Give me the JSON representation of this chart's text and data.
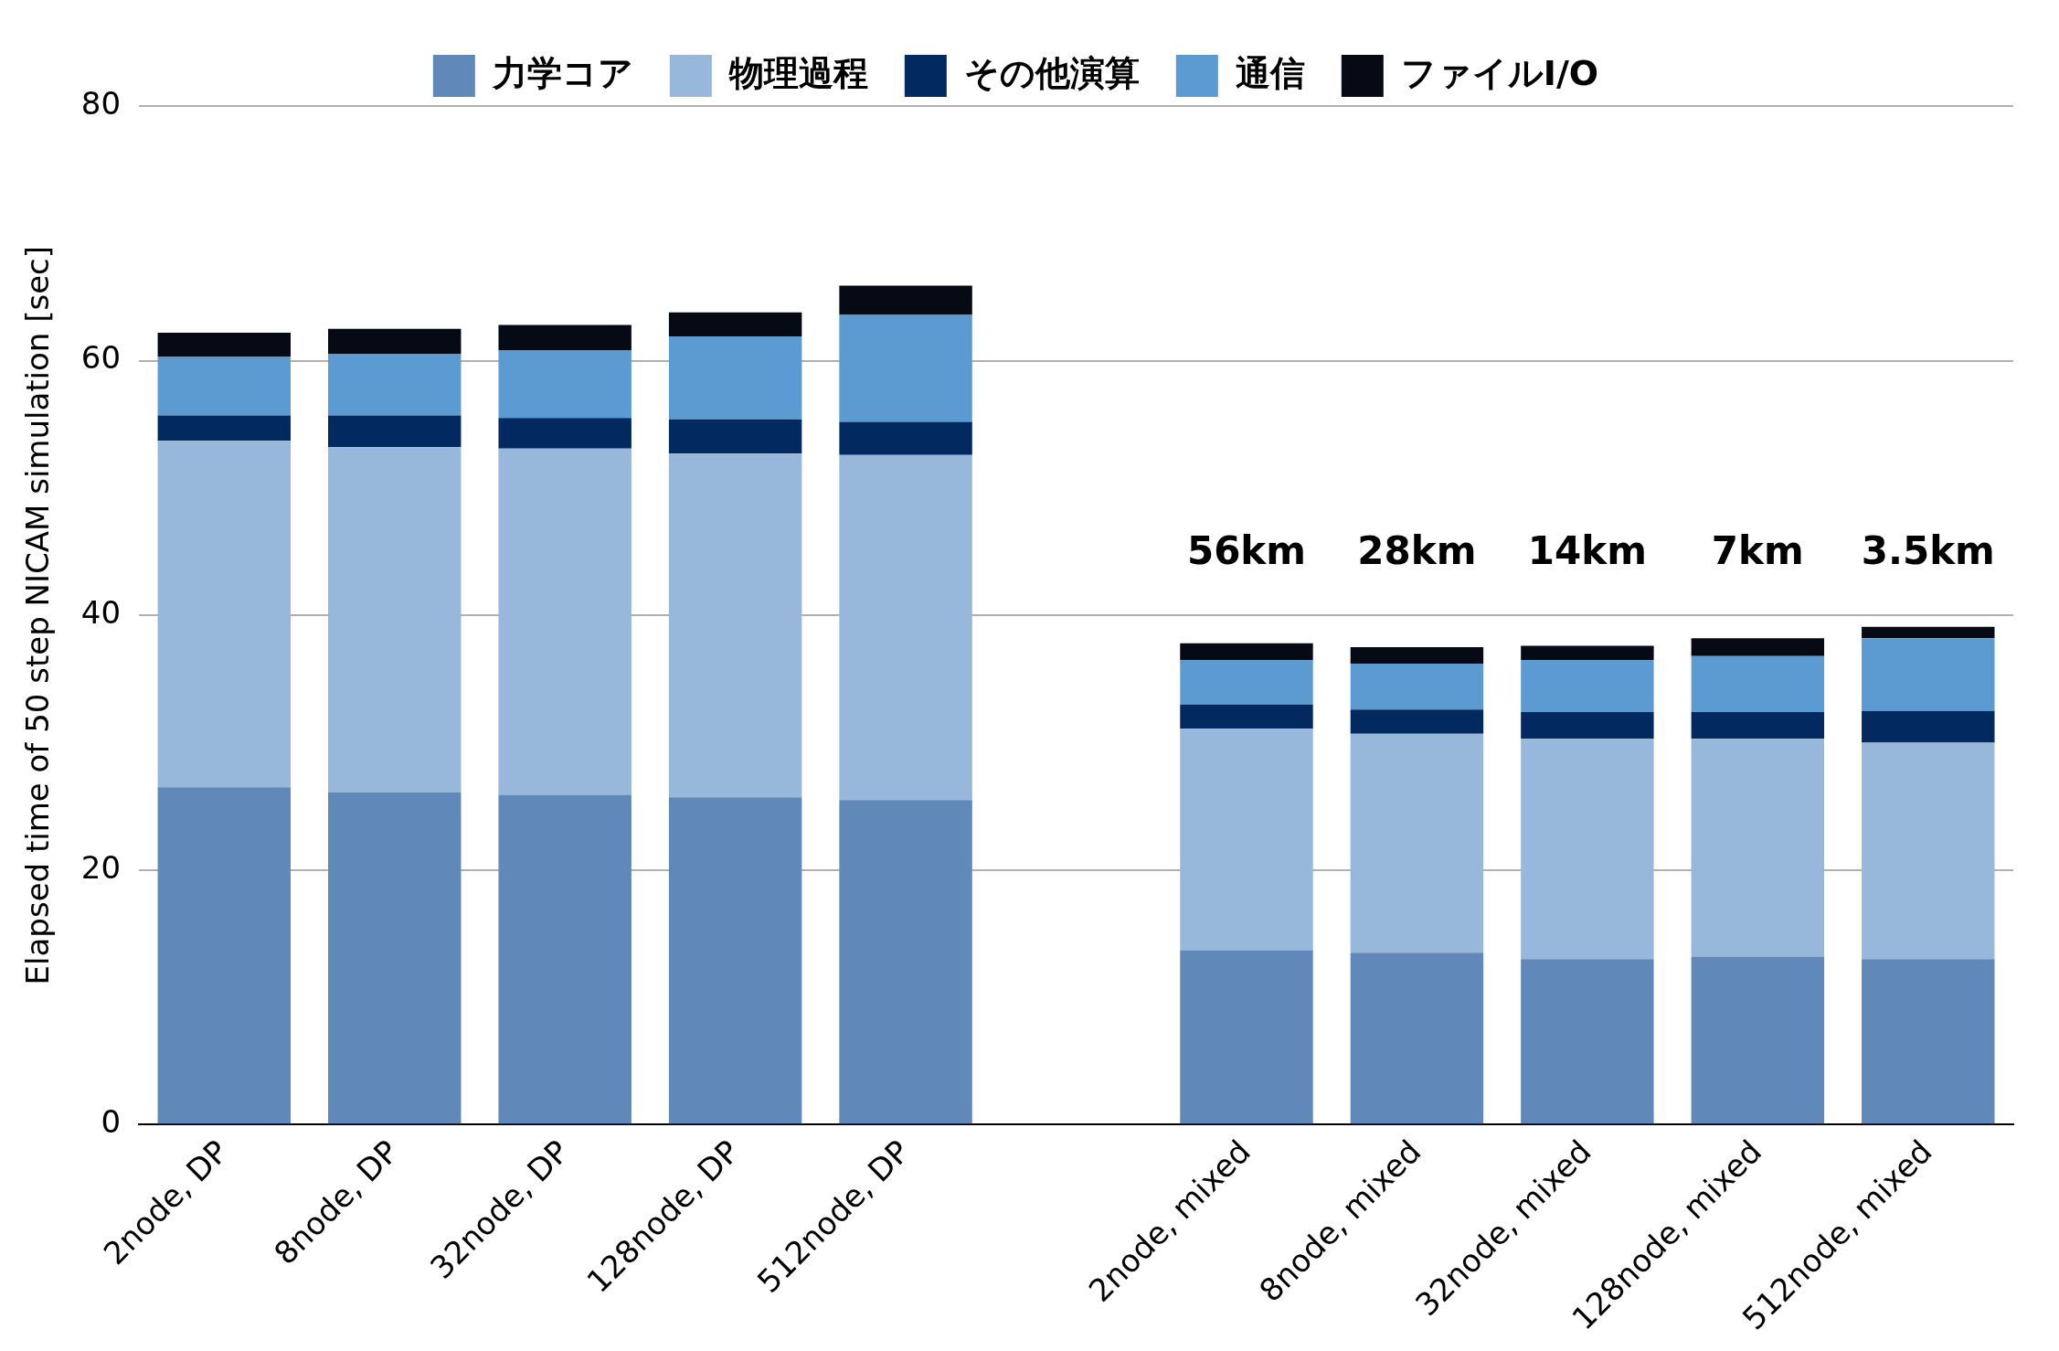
{
  "chart_data": {
    "type": "bar",
    "stacked": true,
    "ylabel": "Elapsed time of 50 step NICAM simulation [sec]",
    "categories": [
      "2node, DP",
      "8node, DP",
      "32node, DP",
      "128node, DP",
      "512node, DP",
      null,
      "2node, mixed",
      "8node, mixed",
      "32node, mixed",
      "128node, mixed",
      "512node, mixed"
    ],
    "series": [
      {
        "name": "力学コア",
        "color": "#6088b8",
        "values": [
          26.5,
          26.1,
          25.9,
          25.7,
          25.5,
          null,
          13.7,
          13.5,
          13.0,
          13.2,
          13.0
        ]
      },
      {
        "name": "物理過程",
        "color": "#97b8da",
        "values": [
          27.2,
          27.1,
          27.2,
          27.0,
          27.1,
          null,
          17.4,
          17.2,
          17.3,
          17.1,
          17.0
        ]
      },
      {
        "name": "その他演算",
        "color": "#022a60",
        "values": [
          2.0,
          2.5,
          2.4,
          2.7,
          2.6,
          null,
          1.9,
          1.9,
          2.1,
          2.1,
          2.5
        ]
      },
      {
        "name": "通信",
        "color": "#5b9bd1",
        "values": [
          4.6,
          4.8,
          5.3,
          6.5,
          8.4,
          null,
          3.5,
          3.6,
          4.1,
          4.4,
          5.7
        ]
      },
      {
        "name": "ファイルI/O",
        "color": "#050a14",
        "values": [
          1.9,
          2.0,
          2.0,
          1.9,
          2.3,
          null,
          1.3,
          1.3,
          1.1,
          1.4,
          0.9
        ]
      }
    ],
    "annotations": [
      "56km",
      "28km",
      "14km",
      "7km",
      "3.5km"
    ],
    "ylim": [
      0,
      80
    ],
    "yticks": [
      0,
      20,
      40,
      60,
      80
    ],
    "grid": "y",
    "legend": "top"
  }
}
